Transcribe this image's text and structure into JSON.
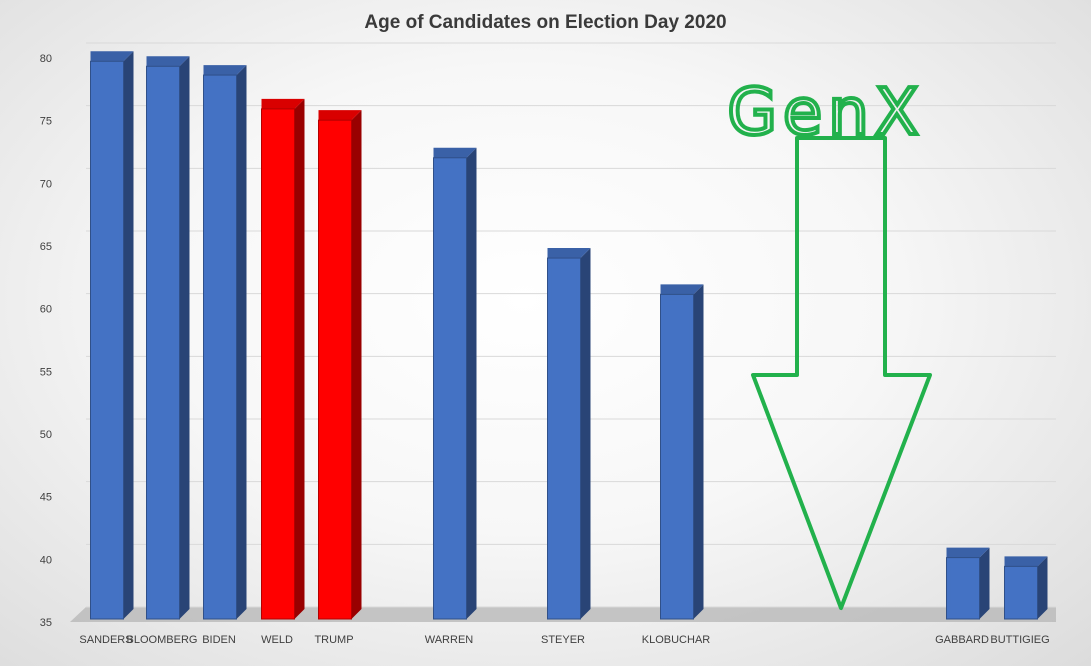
{
  "chart_data": {
    "type": "bar",
    "title": "Age of Candidates on Election Day 2020",
    "xlabel": "",
    "ylabel": "",
    "ylim": [
      35,
      80
    ],
    "yticks": [
      35,
      40,
      45,
      50,
      55,
      60,
      65,
      70,
      75,
      80
    ],
    "grid": true,
    "legend": "none",
    "categories": [
      "SANDERS",
      "BLOOMBERG",
      "BIDEN",
      "WELD",
      "TRUMP",
      "WARREN",
      "STEYER",
      "KLOBUCHAR",
      "GABBARD",
      "BUTTIGIEG"
    ],
    "values": [
      79.1,
      78.7,
      78,
      75.3,
      74.4,
      71.4,
      63.4,
      60.5,
      39.5,
      38.8
    ],
    "colors": [
      "#4472c4",
      "#4472c4",
      "#4472c4",
      "#ff0000",
      "#ff0000",
      "#4472c4",
      "#4472c4",
      "#4472c4",
      "#4472c4",
      "#4472c4"
    ],
    "annotation": {
      "text": "GenX",
      "color": "#22b14c",
      "shape": "down-arrow"
    }
  }
}
